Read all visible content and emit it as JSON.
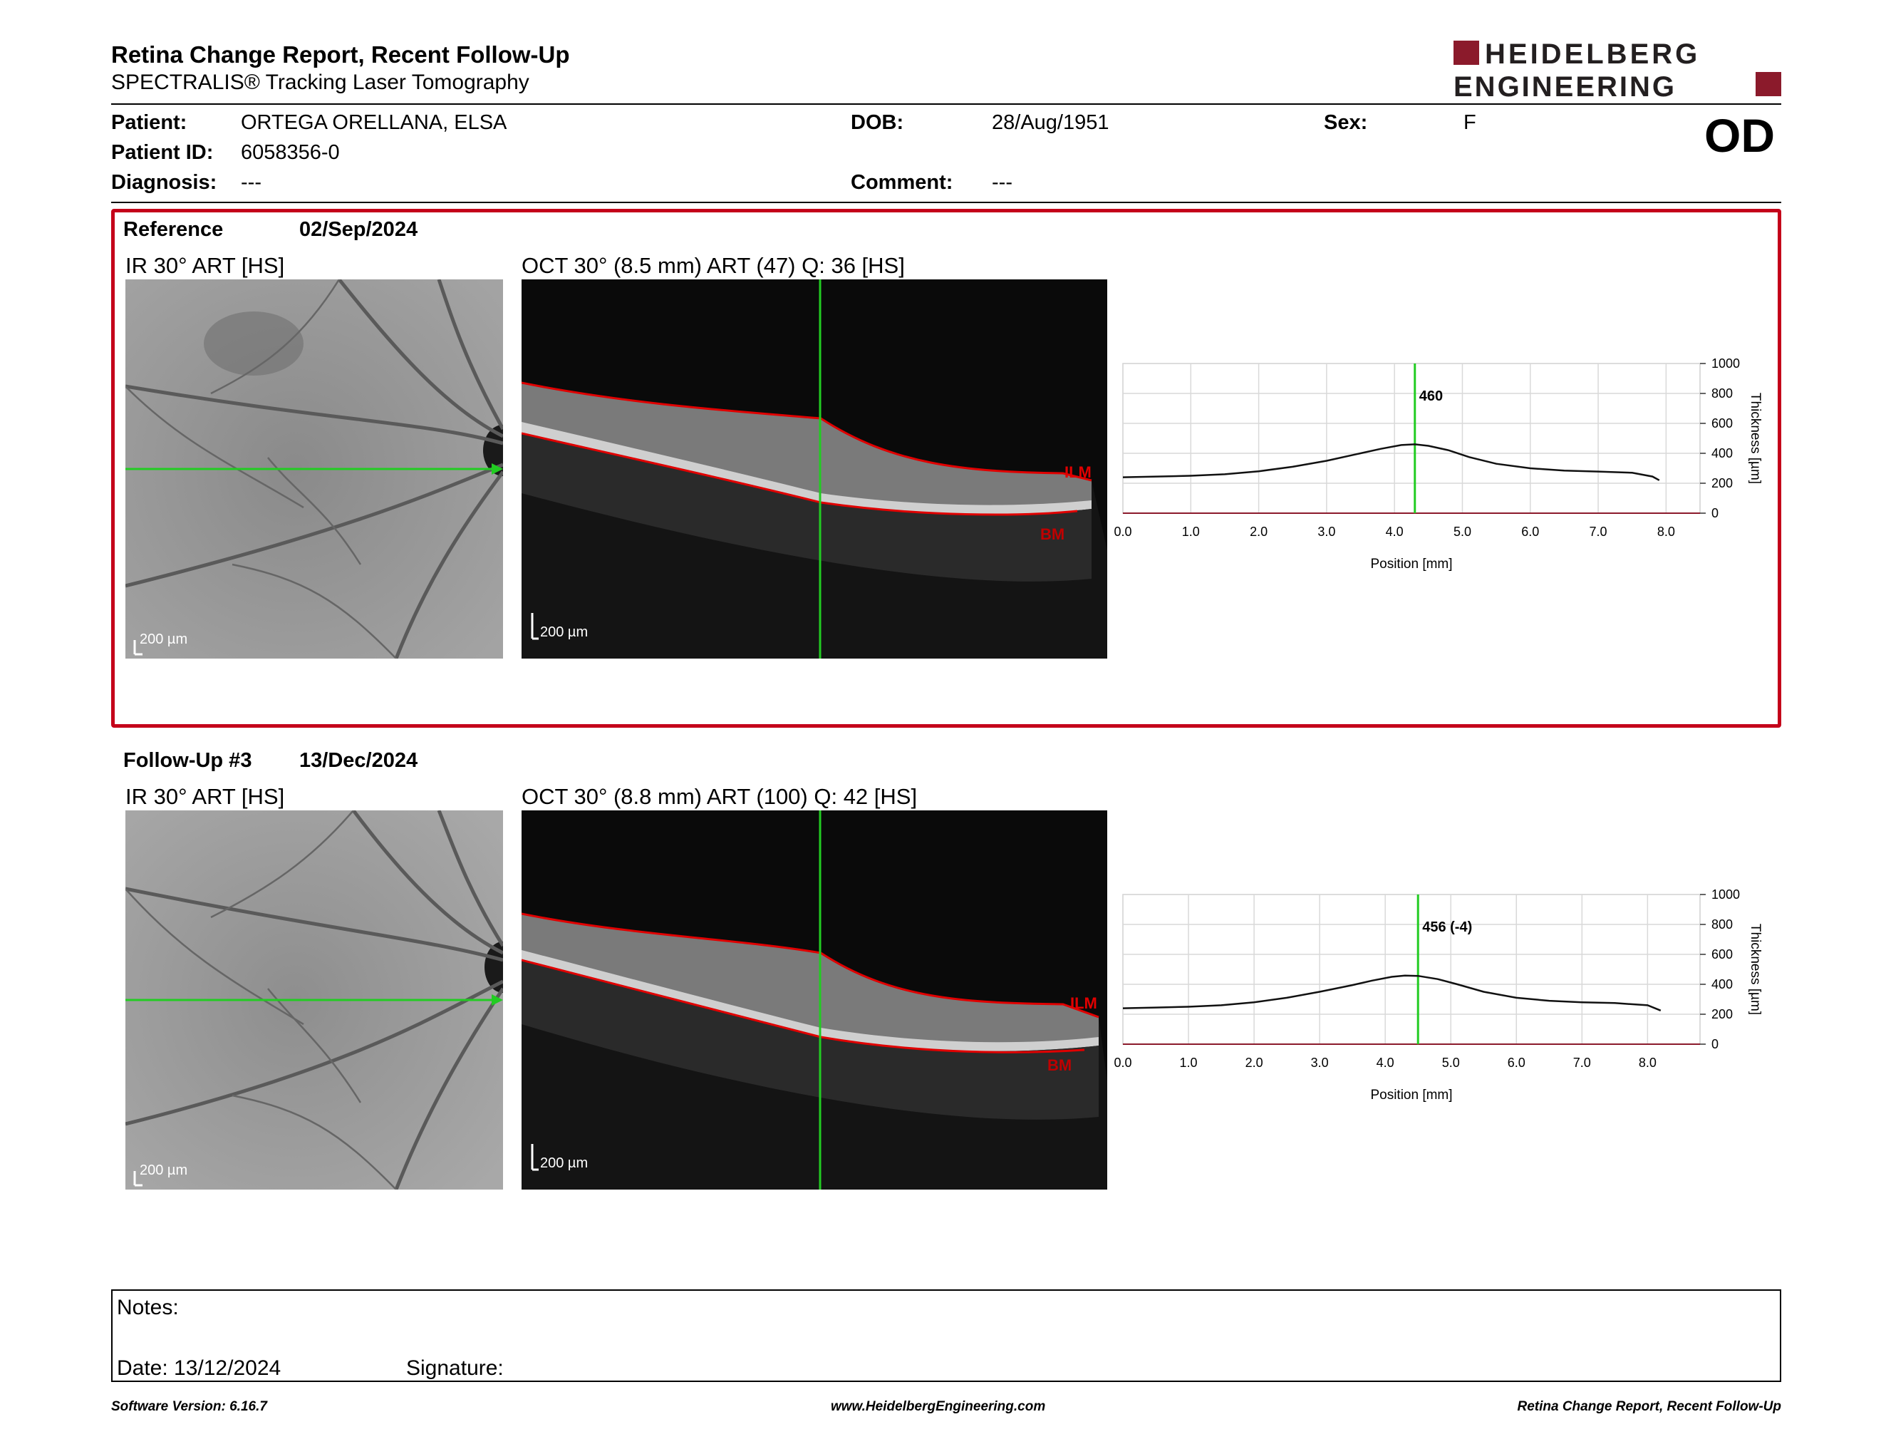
{
  "header": {
    "title": "Retina Change Report, Recent Follow-Up",
    "subtitle": "SPECTRALIS® Tracking Laser Tomography",
    "logo_line1": "HEIDELBERG",
    "logo_line2": "ENGINEERING",
    "brand_color": "#8b1a2b"
  },
  "patient": {
    "patient_label": "Patient:",
    "patient_value": "ORTEGA ORELLANA, ELSA",
    "dob_label": "DOB:",
    "dob_value": "28/Aug/1951",
    "sex_label": "Sex:",
    "sex_value": "F",
    "id_label": "Patient ID:",
    "id_value": "6058356-0",
    "diagnosis_label": "Diagnosis:",
    "diagnosis_value": "---",
    "comment_label": "Comment:",
    "comment_value": "---",
    "eye": "OD"
  },
  "sections": [
    {
      "label": "Reference",
      "date": "02/Sep/2024",
      "ir_label": "IR 30° ART [HS]",
      "oct_label": "OCT 30° (8.5 mm) ART (47) Q: 36 [HS]",
      "scale_ir": "200 µm",
      "scale_oct": "200 µm",
      "ilm": "ILM",
      "bm": "BM",
      "cursor_label": "460",
      "frame_color": "#c4001a"
    },
    {
      "label": "Follow-Up #3",
      "date": "13/Dec/2024",
      "ir_label": "IR 30° ART [HS]",
      "oct_label": "OCT 30° (8.8 mm) ART (100) Q: 42 [HS]",
      "scale_ir": "200 µm",
      "scale_oct": "200 µm",
      "ilm": "ILM",
      "bm": "BM",
      "cursor_label": "456 (-4)"
    }
  ],
  "chart_data": [
    {
      "type": "line",
      "title": "",
      "xlabel": "Position [mm]",
      "ylabel": "Thickness [µm]",
      "xlim": [
        0,
        8.5
      ],
      "ylim": [
        0,
        1000
      ],
      "xticks": [
        "0.0",
        "1.0",
        "2.0",
        "3.0",
        "4.0",
        "5.0",
        "6.0",
        "7.0",
        "8.0"
      ],
      "yticks": [
        "0",
        "200",
        "400",
        "600",
        "800",
        "1000"
      ],
      "cursor_x": 4.3,
      "cursor_value": "460",
      "series": [
        {
          "x": [
            0,
            0.5,
            1.0,
            1.5,
            2.0,
            2.5,
            3.0,
            3.5,
            3.8,
            4.1,
            4.3,
            4.5,
            4.8,
            5.1,
            5.5,
            6.0,
            6.5,
            7.0,
            7.5,
            7.8,
            7.9
          ],
          "y": [
            240,
            245,
            250,
            260,
            280,
            310,
            350,
            400,
            430,
            455,
            460,
            450,
            420,
            375,
            330,
            300,
            285,
            278,
            270,
            245,
            220
          ]
        }
      ]
    },
    {
      "type": "line",
      "title": "",
      "xlabel": "Position [mm]",
      "ylabel": "Thickness [µm]",
      "xlim": [
        0,
        8.8
      ],
      "ylim": [
        0,
        1000
      ],
      "xticks": [
        "0.0",
        "1.0",
        "2.0",
        "3.0",
        "4.0",
        "5.0",
        "6.0",
        "7.0",
        "8.0"
      ],
      "yticks": [
        "0",
        "200",
        "400",
        "600",
        "800",
        "1000"
      ],
      "cursor_x": 4.5,
      "cursor_value": "456 (-4)",
      "series": [
        {
          "x": [
            0,
            0.5,
            1.0,
            1.5,
            2.0,
            2.5,
            3.0,
            3.5,
            3.8,
            4.1,
            4.3,
            4.5,
            4.8,
            5.1,
            5.5,
            6.0,
            6.5,
            7.0,
            7.5,
            8.0,
            8.2
          ],
          "y": [
            240,
            245,
            250,
            260,
            280,
            310,
            350,
            395,
            425,
            450,
            458,
            456,
            435,
            400,
            350,
            310,
            290,
            280,
            275,
            260,
            225
          ]
        }
      ]
    }
  ],
  "notes": {
    "notes_label": "Notes:",
    "date_label": "Date: 13/12/2024",
    "signature_label": "Signature:"
  },
  "footer": {
    "left": "Software Version: 6.16.7",
    "center": "www.HeidelbergEngineering.com",
    "right": "Retina Change Report, Recent Follow-Up"
  }
}
